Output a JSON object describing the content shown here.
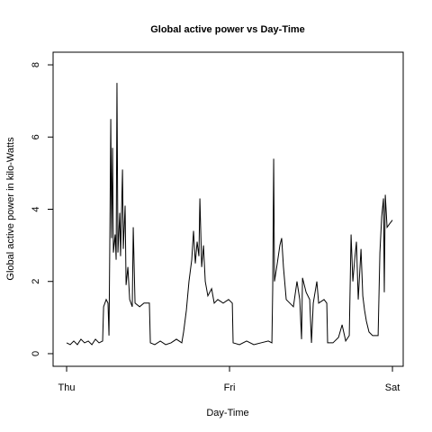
{
  "chart_data": {
    "type": "line",
    "title": "Global active power vs Day-Time",
    "x_label": "Day-Time",
    "y_label": "Global active power in kilo-Watts",
    "color": "#000000",
    "xlim": [
      -0.083,
      2.066
    ],
    "ylim": [
      -0.35,
      8.35
    ],
    "xticks": [
      {
        "value": 0,
        "label": "Thu"
      },
      {
        "value": 1,
        "label": "Fri"
      },
      {
        "value": 2,
        "label": "Sat"
      }
    ],
    "yticks": [
      0,
      2,
      4,
      6,
      8
    ],
    "x": [
      0,
      0.022,
      0.044,
      0.066,
      0.088,
      0.11,
      0.133,
      0.155,
      0.177,
      0.199,
      0.221,
      0.227,
      0.243,
      0.254,
      0.26,
      0.265,
      0.271,
      0.276,
      0.282,
      0.287,
      0.298,
      0.304,
      0.309,
      0.315,
      0.326,
      0.331,
      0.343,
      0.348,
      0.359,
      0.365,
      0.376,
      0.387,
      0.403,
      0.409,
      0.42,
      0.448,
      0.475,
      0.508,
      0.514,
      0.541,
      0.575,
      0.608,
      0.641,
      0.674,
      0.707,
      0.718,
      0.735,
      0.751,
      0.768,
      0.779,
      0.79,
      0.801,
      0.812,
      0.818,
      0.829,
      0.84,
      0.851,
      0.867,
      0.89,
      0.906,
      0.928,
      0.961,
      0.994,
      1.017,
      1.022,
      1.061,
      1.105,
      1.149,
      1.193,
      1.238,
      1.26,
      1.265,
      1.271,
      1.276,
      1.293,
      1.309,
      1.32,
      1.331,
      1.348,
      1.37,
      1.392,
      1.414,
      1.431,
      1.442,
      1.448,
      1.47,
      1.492,
      1.503,
      1.514,
      1.536,
      1.547,
      1.58,
      1.597,
      1.602,
      1.635,
      1.669,
      1.691,
      1.713,
      1.735,
      1.746,
      1.757,
      1.768,
      1.779,
      1.79,
      1.807,
      1.818,
      1.829,
      1.84,
      1.856,
      1.878,
      1.912,
      1.923,
      1.934,
      1.945,
      1.95,
      1.956,
      1.967,
      1.983,
      2.0
    ],
    "values": [
      0.3,
      0.25,
      0.35,
      0.25,
      0.4,
      0.3,
      0.35,
      0.25,
      0.4,
      0.3,
      0.35,
      1.3,
      1.5,
      1.4,
      0.5,
      3.0,
      6.5,
      3.2,
      5.7,
      2.8,
      3.3,
      2.6,
      7.5,
      2.8,
      3.9,
      2.7,
      5.1,
      2.9,
      4.1,
      1.9,
      2.4,
      1.5,
      1.3,
      3.5,
      1.4,
      1.3,
      1.4,
      1.4,
      0.3,
      0.25,
      0.35,
      0.25,
      0.3,
      0.4,
      0.3,
      0.6,
      1.2,
      2.0,
      2.6,
      3.4,
      2.5,
      3.1,
      2.7,
      4.3,
      2.4,
      3.0,
      2.0,
      1.6,
      1.8,
      1.4,
      1.5,
      1.4,
      1.5,
      1.4,
      0.3,
      0.25,
      0.35,
      0.25,
      0.3,
      0.35,
      0.3,
      1.8,
      5.4,
      2.0,
      2.5,
      3.0,
      3.2,
      2.4,
      1.5,
      1.4,
      1.3,
      2.0,
      1.5,
      0.4,
      2.1,
      1.7,
      1.5,
      0.3,
      1.4,
      2.0,
      1.4,
      1.5,
      1.4,
      0.3,
      0.3,
      0.45,
      0.8,
      0.35,
      0.5,
      3.3,
      2.0,
      2.6,
      3.1,
      1.5,
      2.9,
      1.6,
      1.2,
      0.9,
      0.6,
      0.5,
      0.5,
      2.8,
      3.8,
      4.3,
      1.7,
      4.4,
      3.5,
      3.6,
      3.7
    ]
  }
}
